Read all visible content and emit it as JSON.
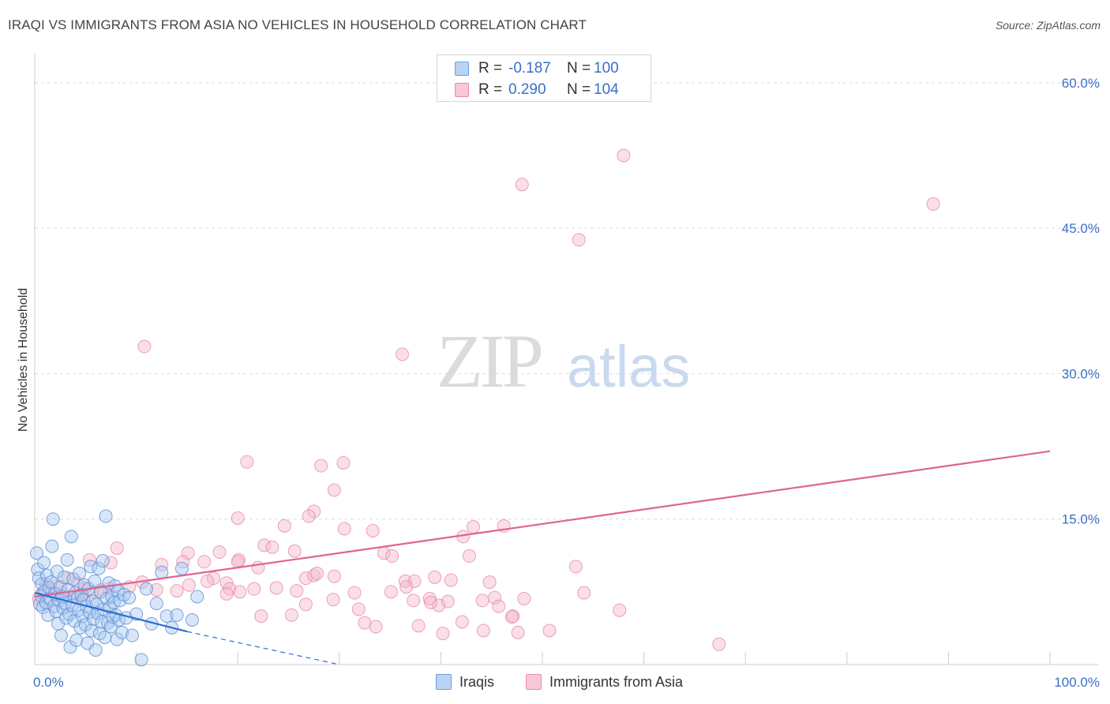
{
  "header": {
    "title": "IRAQI VS IMMIGRANTS FROM ASIA NO VEHICLES IN HOUSEHOLD CORRELATION CHART",
    "source": "Source: ZipAtlas.com"
  },
  "watermark": {
    "zip": "ZIP",
    "atlas": "atlas"
  },
  "legend": {
    "rows": [
      {
        "r_label": "R =",
        "r_value": "-0.187",
        "n_label": "N =",
        "n_value": "100",
        "color": "#a8c8f0"
      },
      {
        "r_label": "R =",
        "r_value": "0.290",
        "n_label": "N =",
        "n_value": "104",
        "color": "#f5b8cb"
      }
    ],
    "series_names": [
      "Iraqis",
      "Immigrants from Asia"
    ]
  },
  "colors": {
    "blue_fill": "#a8c8f0",
    "blue_stroke": "#5a8ed6",
    "blue_line": "#2a6fd0",
    "pink_fill": "#f5b8cb",
    "pink_stroke": "#e889a8",
    "pink_line": "#e0648e",
    "tick_text": "#3a6fc8",
    "grid": "#dcdcdc"
  },
  "chart_data": {
    "type": "scatter",
    "title": "IRAQI VS IMMIGRANTS FROM ASIA NO VEHICLES IN HOUSEHOLD CORRELATION CHART",
    "xlabel": "",
    "ylabel": "No Vehicles in Household",
    "xlim": [
      0,
      100
    ],
    "ylim": [
      0,
      63
    ],
    "x_tick_labels": [
      {
        "value": 0,
        "label": "0.0%"
      },
      {
        "value": 100,
        "label": "100.0%"
      }
    ],
    "y_tick_labels": [
      {
        "value": 15,
        "label": "15.0%"
      },
      {
        "value": 30,
        "label": "30.0%"
      },
      {
        "value": 45,
        "label": "45.0%"
      },
      {
        "value": 60,
        "label": "60.0%"
      }
    ],
    "grid": true,
    "legend_position": "top-center",
    "series": [
      {
        "name": "Iraqis",
        "r": -0.187,
        "n": 100,
        "trend": {
          "solid": [
            [
              0,
              7.4
            ],
            [
              15,
              3.4
            ]
          ],
          "dashed": [
            [
              15,
              3.4
            ],
            [
              30,
              0
            ]
          ]
        },
        "points": [
          [
            0.2,
            11.5
          ],
          [
            0.3,
            9.8
          ],
          [
            0.4,
            8.9
          ],
          [
            0.5,
            6.2
          ],
          [
            0.6,
            7.1
          ],
          [
            0.7,
            8.3
          ],
          [
            0.8,
            5.9
          ],
          [
            0.9,
            10.5
          ],
          [
            1.0,
            7.6
          ],
          [
            1.1,
            6.4
          ],
          [
            1.2,
            9.2
          ],
          [
            1.3,
            5.1
          ],
          [
            1.4,
            7.9
          ],
          [
            1.5,
            6.8
          ],
          [
            1.6,
            8.5
          ],
          [
            1.7,
            12.2
          ],
          [
            1.8,
            15.0
          ],
          [
            1.9,
            6.0
          ],
          [
            2.0,
            7.3
          ],
          [
            2.1,
            5.5
          ],
          [
            2.2,
            9.6
          ],
          [
            2.3,
            4.2
          ],
          [
            2.4,
            6.6
          ],
          [
            2.5,
            8.0
          ],
          [
            2.6,
            3.0
          ],
          [
            2.7,
            7.0
          ],
          [
            2.8,
            5.8
          ],
          [
            2.9,
            9.0
          ],
          [
            3.0,
            6.3
          ],
          [
            3.1,
            4.8
          ],
          [
            3.2,
            10.8
          ],
          [
            3.3,
            7.7
          ],
          [
            3.4,
            5.2
          ],
          [
            3.5,
            1.8
          ],
          [
            3.6,
            13.2
          ],
          [
            3.7,
            6.1
          ],
          [
            3.8,
            8.8
          ],
          [
            3.9,
            4.5
          ],
          [
            4.0,
            7.4
          ],
          [
            4.1,
            2.5
          ],
          [
            4.2,
            6.9
          ],
          [
            4.3,
            5.6
          ],
          [
            4.4,
            9.4
          ],
          [
            4.5,
            3.8
          ],
          [
            4.6,
            7.2
          ],
          [
            4.7,
            5.0
          ],
          [
            4.8,
            6.7
          ],
          [
            4.9,
            8.2
          ],
          [
            5.0,
            4.1
          ],
          [
            5.1,
            6.0
          ],
          [
            5.2,
            2.2
          ],
          [
            5.3,
            7.8
          ],
          [
            5.4,
            5.4
          ],
          [
            5.5,
            10.1
          ],
          [
            5.6,
            3.5
          ],
          [
            5.7,
            6.5
          ],
          [
            5.8,
            4.7
          ],
          [
            5.9,
            8.6
          ],
          [
            6.0,
            1.5
          ],
          [
            6.1,
            6.2
          ],
          [
            6.2,
            5.3
          ],
          [
            6.3,
            9.9
          ],
          [
            6.4,
            3.2
          ],
          [
            6.5,
            7.5
          ],
          [
            6.6,
            4.4
          ],
          [
            6.7,
            10.7
          ],
          [
            6.8,
            5.7
          ],
          [
            6.9,
            2.8
          ],
          [
            7.0,
            15.3
          ],
          [
            7.1,
            6.8
          ],
          [
            7.2,
            4.3
          ],
          [
            7.3,
            8.4
          ],
          [
            7.4,
            5.9
          ],
          [
            7.5,
            3.9
          ],
          [
            7.6,
            7.0
          ],
          [
            7.7,
            4.9
          ],
          [
            7.8,
            6.4
          ],
          [
            7.9,
            8.1
          ],
          [
            8.0,
            5.1
          ],
          [
            8.1,
            2.6
          ],
          [
            8.2,
            7.6
          ],
          [
            8.3,
            4.6
          ],
          [
            8.4,
            6.6
          ],
          [
            8.6,
            3.3
          ],
          [
            8.8,
            7.2
          ],
          [
            9.0,
            4.8
          ],
          [
            9.3,
            6.9
          ],
          [
            9.6,
            3.0
          ],
          [
            10.0,
            5.2
          ],
          [
            10.5,
            0.5
          ],
          [
            11.0,
            7.8
          ],
          [
            11.5,
            4.2
          ],
          [
            12.0,
            6.3
          ],
          [
            12.5,
            9.5
          ],
          [
            13.0,
            5.0
          ],
          [
            13.5,
            3.8
          ],
          [
            14.0,
            5.1
          ],
          [
            14.5,
            9.9
          ],
          [
            15.5,
            4.6
          ],
          [
            16.0,
            7.0
          ]
        ]
      },
      {
        "name": "Immigrants from Asia",
        "r": 0.29,
        "n": 104,
        "trend": {
          "solid": [
            [
              0,
              7.0
            ],
            [
              100,
              22.0
            ]
          ]
        },
        "points": [
          [
            48.0,
            49.5
          ],
          [
            58.0,
            52.5
          ],
          [
            53.6,
            43.8
          ],
          [
            88.5,
            47.5
          ],
          [
            10.8,
            32.8
          ],
          [
            36.2,
            32.0
          ],
          [
            20.9,
            20.9
          ],
          [
            28.2,
            20.5
          ],
          [
            30.4,
            20.8
          ],
          [
            29.5,
            18.0
          ],
          [
            27.5,
            15.8
          ],
          [
            27.0,
            15.3
          ],
          [
            20.0,
            15.1
          ],
          [
            24.6,
            14.3
          ],
          [
            33.3,
            13.8
          ],
          [
            30.5,
            14.0
          ],
          [
            43.2,
            14.2
          ],
          [
            46.2,
            14.3
          ],
          [
            42.2,
            13.2
          ],
          [
            22.6,
            12.3
          ],
          [
            23.4,
            12.1
          ],
          [
            25.6,
            11.7
          ],
          [
            34.4,
            11.5
          ],
          [
            35.2,
            11.2
          ],
          [
            42.8,
            11.2
          ],
          [
            20.1,
            10.8
          ],
          [
            15.1,
            11.5
          ],
          [
            18.2,
            11.6
          ],
          [
            20.0,
            10.6
          ],
          [
            22.0,
            10.0
          ],
          [
            53.3,
            10.1
          ],
          [
            8.1,
            12.0
          ],
          [
            7.5,
            10.5
          ],
          [
            5.4,
            10.8
          ],
          [
            12.5,
            10.3
          ],
          [
            14.6,
            10.6
          ],
          [
            16.7,
            10.6
          ],
          [
            17.6,
            8.9
          ],
          [
            26.7,
            8.9
          ],
          [
            27.5,
            9.2
          ],
          [
            27.8,
            9.4
          ],
          [
            29.5,
            9.1
          ],
          [
            36.5,
            8.6
          ],
          [
            37.4,
            8.6
          ],
          [
            39.4,
            9.0
          ],
          [
            44.8,
            8.5
          ],
          [
            41.0,
            8.7
          ],
          [
            18.9,
            8.4
          ],
          [
            19.2,
            7.8
          ],
          [
            17.0,
            8.6
          ],
          [
            15.2,
            8.2
          ],
          [
            14.0,
            7.6
          ],
          [
            12.0,
            7.7
          ],
          [
            10.6,
            8.5
          ],
          [
            9.3,
            8.0
          ],
          [
            7.3,
            7.8
          ],
          [
            6.5,
            7.7
          ],
          [
            5.7,
            7.5
          ],
          [
            4.9,
            7.9
          ],
          [
            4.6,
            7.1
          ],
          [
            4.2,
            8.4
          ],
          [
            3.9,
            6.9
          ],
          [
            3.3,
            8.9
          ],
          [
            2.7,
            7.4
          ],
          [
            2.2,
            8.1
          ],
          [
            1.6,
            7.6
          ],
          [
            1.1,
            8.3
          ],
          [
            0.8,
            7.4
          ],
          [
            0.4,
            6.8
          ],
          [
            21.6,
            7.8
          ],
          [
            23.8,
            7.9
          ],
          [
            20.2,
            7.5
          ],
          [
            18.9,
            7.3
          ],
          [
            25.8,
            7.6
          ],
          [
            26.7,
            6.2
          ],
          [
            29.4,
            6.7
          ],
          [
            31.5,
            7.4
          ],
          [
            35.1,
            7.5
          ],
          [
            37.3,
            6.6
          ],
          [
            38.9,
            6.8
          ],
          [
            39.8,
            6.1
          ],
          [
            40.7,
            6.5
          ],
          [
            44.1,
            6.6
          ],
          [
            45.3,
            6.9
          ],
          [
            45.7,
            6.0
          ],
          [
            54.1,
            7.4
          ],
          [
            57.6,
            5.6
          ],
          [
            47.1,
            5.0
          ],
          [
            47.0,
            4.9
          ],
          [
            31.9,
            5.7
          ],
          [
            25.3,
            5.1
          ],
          [
            22.3,
            5.0
          ],
          [
            32.5,
            4.3
          ],
          [
            33.6,
            3.9
          ],
          [
            37.8,
            4.0
          ],
          [
            42.1,
            4.4
          ],
          [
            40.2,
            3.2
          ],
          [
            44.2,
            3.5
          ],
          [
            47.6,
            3.3
          ],
          [
            50.7,
            3.5
          ],
          [
            67.4,
            2.1
          ],
          [
            36.6,
            8.0
          ],
          [
            39.0,
            6.4
          ],
          [
            48.2,
            6.8
          ]
        ]
      }
    ]
  }
}
